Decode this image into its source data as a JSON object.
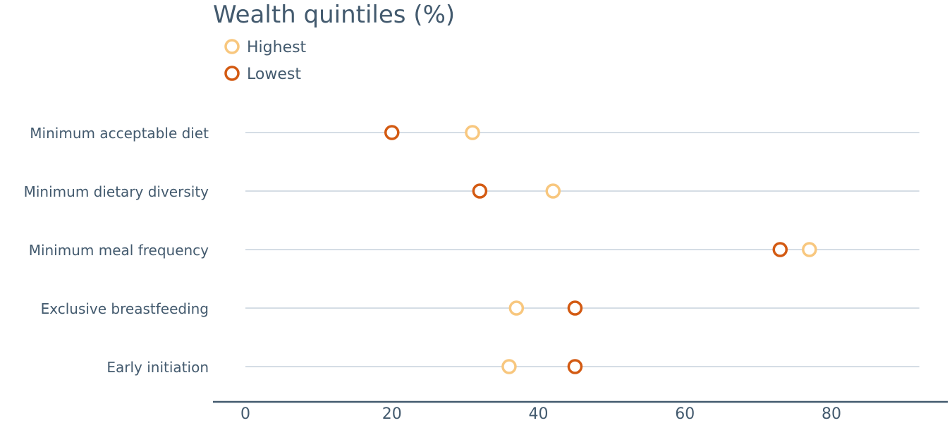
{
  "chart_data": {
    "type": "scatter",
    "title": "Wealth quintiles (%)",
    "categories": [
      "Minimum acceptable diet",
      "Minimum dietary diversity",
      "Minimum meal frequency",
      "Exclusive breastfeeding",
      "Early initiation"
    ],
    "series": [
      {
        "name": "Highest",
        "color": "#f8c77e",
        "values": [
          31,
          42,
          77,
          37,
          36
        ]
      },
      {
        "name": "Lowest",
        "color": "#d35a12",
        "values": [
          20,
          32,
          73,
          45,
          45
        ]
      }
    ],
    "xlim": [
      0,
      92
    ],
    "xticks": [
      "0",
      "20",
      "40",
      "60",
      "80"
    ],
    "xlabel": "",
    "ylabel": "",
    "legend": "top-left",
    "grid": "horizontal row lines"
  }
}
